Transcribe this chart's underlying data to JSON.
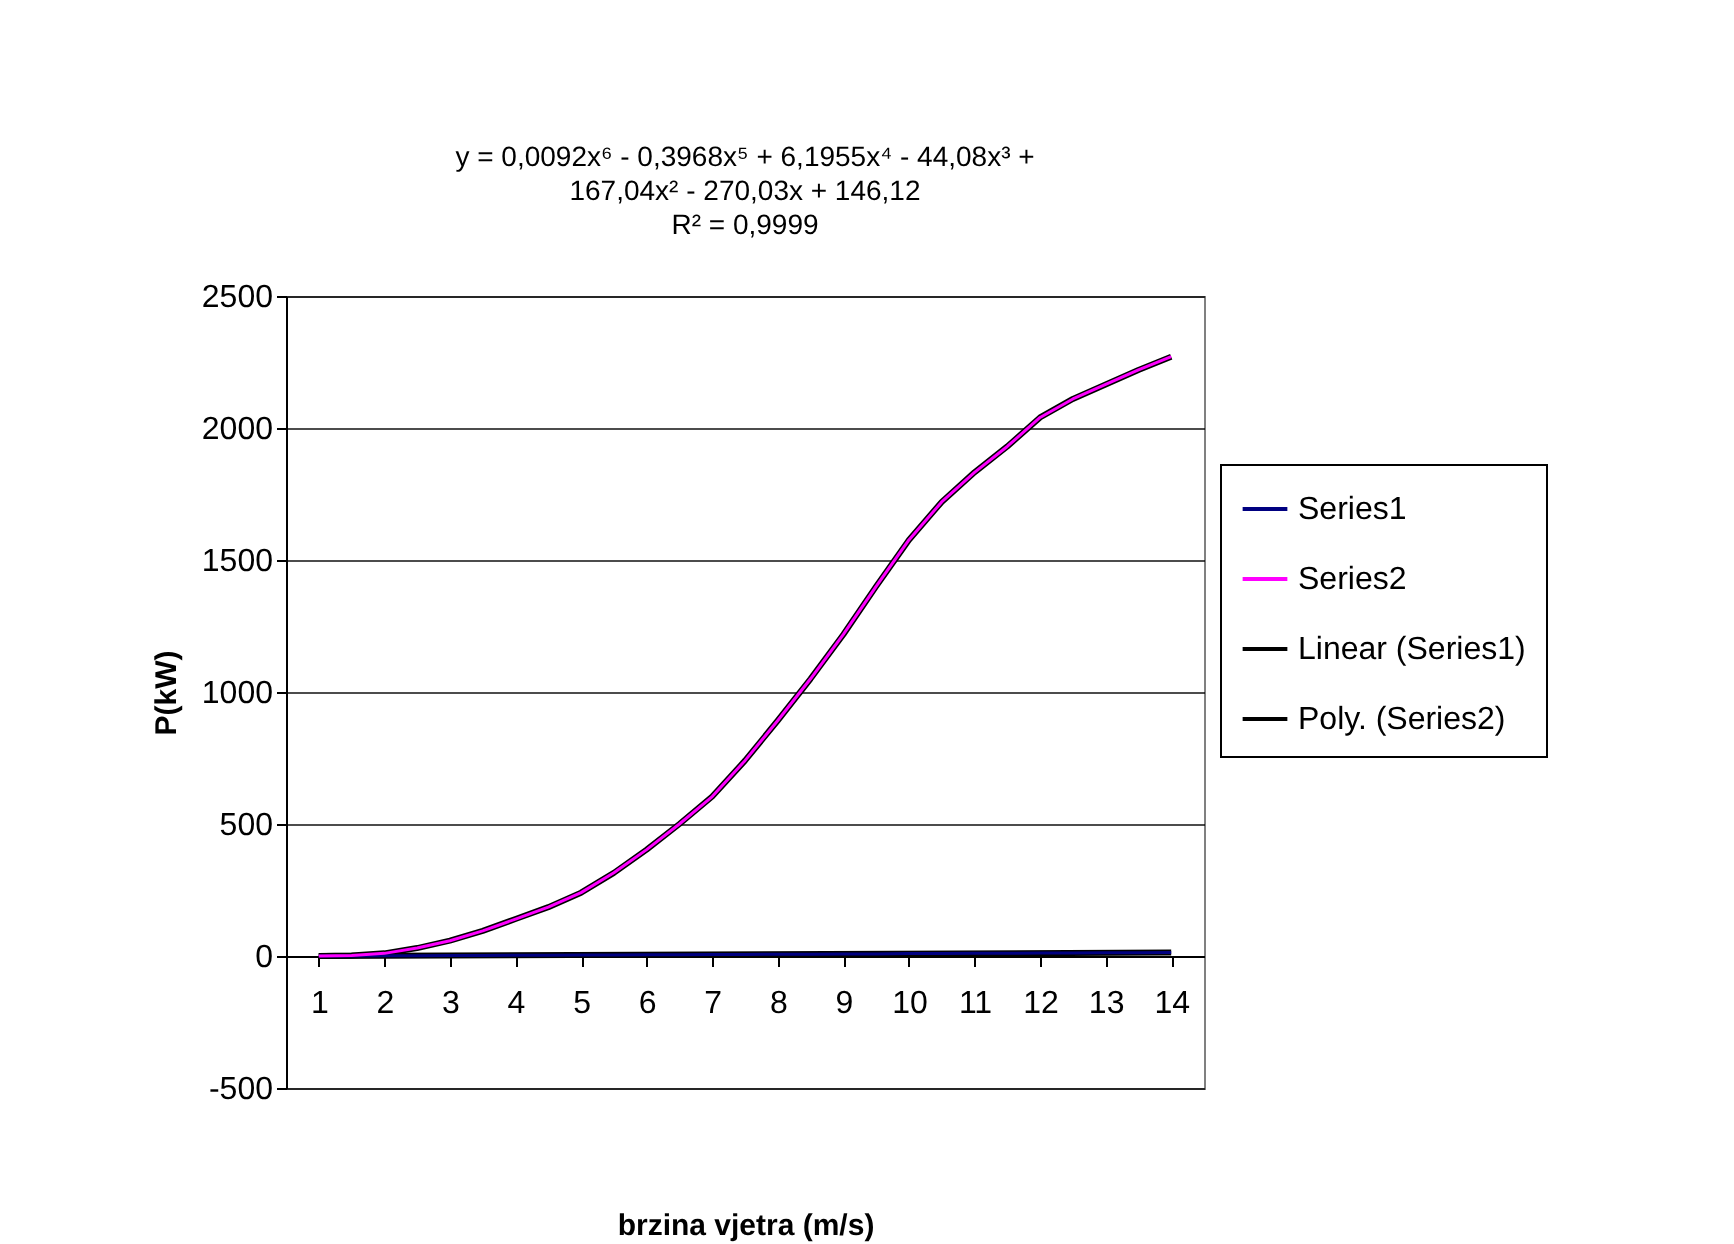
{
  "chart_data": {
    "type": "line",
    "xlabel": "brzina vjetra (m/s)",
    "ylabel": "P(kW)",
    "annotations": [
      "y = 0,0092x⁶ - 0,3968x⁵ + 6,1955x⁴ - 44,08x³ +",
      "167,04x² - 270,03x + 146,12",
      "R² = 0,9999"
    ],
    "x": [
      1,
      1.5,
      2,
      2.5,
      3,
      3.5,
      4,
      4.5,
      5,
      5.5,
      6,
      6.5,
      7,
      7.5,
      8,
      8.5,
      9,
      9.5,
      10,
      10.5,
      11,
      11.5,
      12,
      12.5,
      13,
      13.5,
      14
    ],
    "series": [
      {
        "name": "Series1",
        "color": "#000080",
        "values": [
          0,
          0,
          1,
          1,
          2,
          2,
          3,
          3,
          4,
          4,
          5,
          5,
          6,
          6,
          7,
          7,
          8,
          8,
          9,
          9,
          10,
          10,
          11,
          11,
          12,
          12,
          13
        ]
      },
      {
        "name": "Series2",
        "color": "#ff00ff",
        "values": [
          0,
          2,
          10,
          30,
          58,
          95,
          140,
          185,
          240,
          315,
          403,
          500,
          604,
          740,
          892,
          1050,
          1218,
          1400,
          1576,
          1720,
          1832,
          1930,
          2040,
          2110,
          2165,
          2220,
          2270
        ]
      },
      {
        "name": "Linear (Series1)",
        "color": "#000000",
        "x": [
          1,
          14
        ],
        "values": [
          0,
          13
        ]
      },
      {
        "name": "Poly. (Series2)",
        "color": "#000000",
        "values": [
          0,
          2,
          10,
          30,
          58,
          95,
          140,
          185,
          240,
          315,
          403,
          500,
          604,
          740,
          892,
          1050,
          1218,
          1400,
          1576,
          1720,
          1832,
          1930,
          2040,
          2110,
          2165,
          2220,
          2270
        ]
      }
    ],
    "xlim": [
      0.5,
      14.5
    ],
    "xticks": [
      1,
      2,
      3,
      4,
      5,
      6,
      7,
      8,
      9,
      10,
      11,
      12,
      13,
      14
    ],
    "ylim": [
      -500,
      2500
    ],
    "yticks": [
      -500,
      0,
      500,
      1000,
      1500,
      2000,
      2500
    ],
    "grid": "y",
    "legend": "right"
  }
}
